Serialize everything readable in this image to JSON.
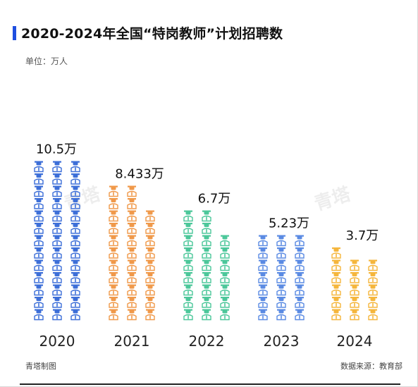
{
  "title": "2020-2024年全国“特岗教师”计划招聘数",
  "unit_label": "单位：万人",
  "credit": "青塔制图",
  "source": "数据来源：教育部",
  "watermark": "青塔",
  "chart_data": {
    "type": "bar",
    "title": "2020-2024年全国“特岗教师”计划招聘数",
    "categories": [
      "2020",
      "2021",
      "2022",
      "2023",
      "2024"
    ],
    "values": [
      10.5,
      8.433,
      6.7,
      5.23,
      3.7
    ],
    "value_labels": [
      "10.5万",
      "8.433万",
      "6.7万",
      "5.23万",
      "3.7万"
    ],
    "unit": "万人",
    "colors": [
      "#3d6fd8",
      "#f0994a",
      "#4cc79a",
      "#5b8be3",
      "#f5b63c"
    ],
    "icon": "teacher-icon",
    "columns_per_bar": 3,
    "grid": false,
    "legend": "none"
  }
}
